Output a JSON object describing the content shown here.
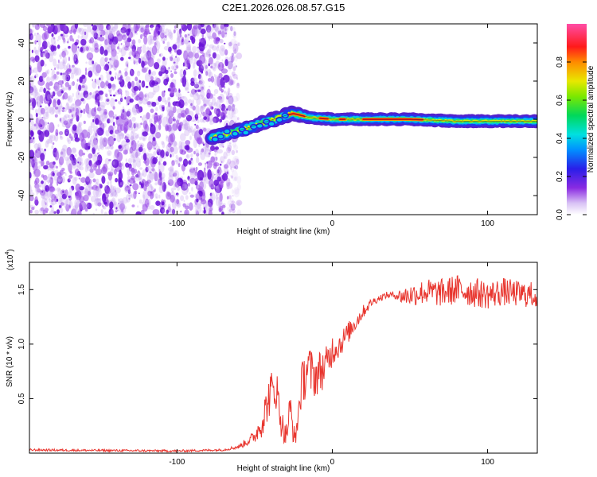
{
  "chart_data": [
    {
      "type": "heatmap",
      "title": "C2E1.2026.026.08.57.G15",
      "xlabel": "Height of straight line (km)",
      "ylabel": "Frequency (Hz)",
      "xlim": [
        -195,
        132
      ],
      "ylim": [
        -50,
        50
      ],
      "x_ticks": [
        {
          "value": -100,
          "label": "-100"
        },
        {
          "value": 0,
          "label": "0"
        },
        {
          "value": 100,
          "label": "100"
        }
      ],
      "y_ticks": [
        {
          "value": 40,
          "label": "40"
        },
        {
          "value": 20,
          "label": "20"
        },
        {
          "value": 0,
          "label": "0"
        },
        {
          "value": -20,
          "label": "-20"
        },
        {
          "value": -40,
          "label": "-40"
        }
      ],
      "noise_region_x": [
        -195,
        -62
      ],
      "ridge": {
        "x": [
          -78,
          -60,
          -45,
          -30,
          -25,
          -15,
          0,
          20,
          50,
          80,
          132
        ],
        "frequency": [
          -10,
          -6,
          -2,
          2,
          3,
          1,
          0,
          0,
          0,
          -1,
          -1
        ]
      },
      "colorbar": {
        "label": "Normalized spectral amplitude",
        "range": [
          0,
          1
        ],
        "ticks": [
          {
            "value": 0.0,
            "label": "0.0"
          },
          {
            "value": 0.2,
            "label": "0.2"
          },
          {
            "value": 0.4,
            "label": "0.4"
          },
          {
            "value": 0.6,
            "label": "0.6"
          },
          {
            "value": 0.8,
            "label": "0.8"
          }
        ]
      }
    },
    {
      "type": "line",
      "xlabel": "Height of straight line (km)",
      "ylabel": "SNR (10 * v/v)",
      "y_multiplier": "(x10",
      "y_multiplier_exp": "4",
      "y_multiplier_close": ")",
      "xlim": [
        -195,
        132
      ],
      "ylim": [
        0,
        1.75
      ],
      "color": "#e8352e",
      "x_ticks": [
        {
          "value": -100,
          "label": "-100"
        },
        {
          "value": 0,
          "label": "0"
        },
        {
          "value": 100,
          "label": "100"
        }
      ],
      "y_ticks": [
        {
          "value": 0.5,
          "label": "0.5"
        },
        {
          "value": 1.0,
          "label": "1.0"
        },
        {
          "value": 1.5,
          "label": "1.5"
        }
      ],
      "series": [
        {
          "name": "SNR",
          "x": [
            -195,
            -150,
            -100,
            -70,
            -60,
            -50,
            -45,
            -40,
            -36,
            -33,
            -30,
            -27,
            -24,
            -20,
            -16,
            -12,
            -8,
            -4,
            0,
            5,
            10,
            15,
            20,
            25,
            30,
            35,
            40,
            45,
            50,
            60,
            70,
            80,
            90,
            100,
            110,
            120,
            132
          ],
          "y": [
            0.03,
            0.025,
            0.02,
            0.03,
            0.06,
            0.15,
            0.3,
            0.55,
            0.6,
            0.3,
            0.15,
            0.4,
            0.1,
            0.6,
            0.8,
            0.7,
            0.75,
            0.8,
            0.95,
            1.0,
            1.1,
            1.2,
            1.3,
            1.38,
            1.42,
            1.45,
            1.45,
            1.44,
            1.45,
            1.48,
            1.47,
            1.5,
            1.48,
            1.45,
            1.48,
            1.46,
            1.45
          ],
          "noise_amp": [
            0.01,
            0.01,
            0.01,
            0.01,
            0.02,
            0.06,
            0.15,
            0.2,
            0.2,
            0.15,
            0.1,
            0.2,
            0.08,
            0.2,
            0.25,
            0.2,
            0.2,
            0.18,
            0.15,
            0.12,
            0.1,
            0.08,
            0.06,
            0.04,
            0.03,
            0.03,
            0.03,
            0.08,
            0.1,
            0.12,
            0.13,
            0.14,
            0.14,
            0.13,
            0.13,
            0.12,
            0.12
          ]
        }
      ]
    }
  ]
}
